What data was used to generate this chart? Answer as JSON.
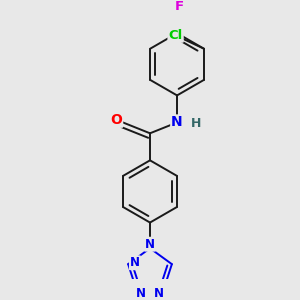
{
  "background_color": "#e8e8e8",
  "bond_color": "#1a1a1a",
  "atom_colors": {
    "O": "#ff0000",
    "N": "#0000ee",
    "Cl": "#00cc00",
    "F": "#dd00dd",
    "H": "#336666",
    "C": "#1a1a1a"
  },
  "lw": 1.4,
  "dbo": 0.018,
  "figsize": [
    3.0,
    3.0
  ],
  "dpi": 100
}
